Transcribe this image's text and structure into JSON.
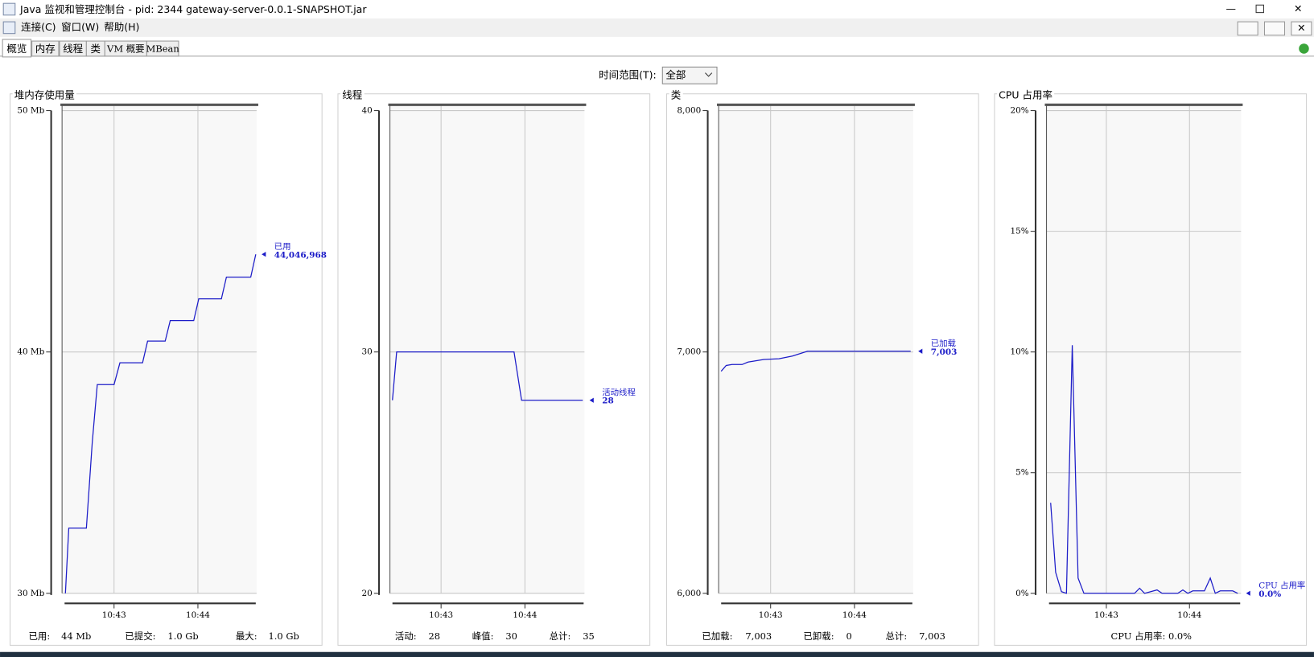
{
  "window": {
    "title": "Java 监视和管理控制台 - pid: 2344 gateway-server-0.0.1-SNAPSHOT.jar"
  },
  "menu": [
    "连接(C)",
    "窗口(W)",
    "帮助(H)"
  ],
  "tabs": [
    "概览",
    "内存",
    "线程",
    "类",
    "VM 概要",
    "MBean"
  ],
  "time_range": {
    "label": "时间范围(T):",
    "value": "全部"
  },
  "chart_data": [
    {
      "type": "line",
      "title": "堆内存使用量",
      "grid": true,
      "x": [
        642.42,
        642.46,
        642.67,
        642.74,
        642.8,
        643.0,
        643.07,
        643.34,
        643.4,
        643.61,
        643.67,
        643.95,
        644.01,
        644.28,
        644.34,
        644.63,
        644.69
      ],
      "xlim": [
        642.38,
        644.7
      ],
      "xticks": [
        {
          "value": 643,
          "label": "10:43"
        },
        {
          "value": 644,
          "label": "10:44"
        }
      ],
      "ylim": [
        30,
        50
      ],
      "yticks": [
        {
          "value": 30,
          "label": "30 Mb"
        },
        {
          "value": 40,
          "label": "40 Mb"
        },
        {
          "value": 50,
          "label": "50 Mb"
        }
      ],
      "series": [
        {
          "name": "已用",
          "color": "#1c1cc8",
          "values": [
            30.0,
            32.7,
            32.7,
            36.25,
            38.65,
            38.65,
            39.55,
            39.55,
            40.45,
            40.45,
            41.3,
            41.3,
            42.2,
            42.2,
            43.1,
            43.1,
            44.046968
          ],
          "value_labels": [
            null,
            null,
            null,
            null,
            null,
            null,
            null,
            null,
            null,
            null,
            null,
            null,
            null,
            null,
            null,
            null,
            "44,046,968"
          ]
        }
      ],
      "summary": [
        "已用:",
        "44  Mb",
        "已提交:",
        "1.0  Gb",
        "最大:",
        "1.0  Gb"
      ]
    },
    {
      "type": "line",
      "title": "线程",
      "grid": true,
      "x": [
        642.42,
        642.47,
        643.87,
        643.96,
        644.69
      ],
      "xlim": [
        642.39,
        644.71
      ],
      "xticks": [
        {
          "value": 643,
          "label": "10:43"
        },
        {
          "value": 644,
          "label": "10:44"
        }
      ],
      "ylim": [
        20,
        40
      ],
      "yticks": [
        20,
        30,
        40
      ],
      "series": [
        {
          "name": "活动线程",
          "color": "#1c1cc8",
          "values": [
            28,
            30,
            30,
            28,
            28
          ]
        }
      ],
      "summary": [
        "活动:",
        "28",
        "峰值:",
        "30",
        "总计:",
        "35"
      ]
    },
    {
      "type": "line",
      "title": "类",
      "grid": true,
      "x": [
        642.41,
        642.47,
        642.54,
        642.66,
        642.73,
        642.92,
        643.1,
        643.26,
        643.44,
        644.67
      ],
      "xlim": [
        642.38,
        644.7
      ],
      "xticks": [
        {
          "value": 643,
          "label": "10:43"
        },
        {
          "value": 644,
          "label": "10:44"
        }
      ],
      "ylim": [
        6000,
        8000
      ],
      "yticks": [
        {
          "value": 6000,
          "label": "6,000"
        },
        {
          "value": 7000,
          "label": "7,000"
        },
        {
          "value": 8000,
          "label": "8,000"
        }
      ],
      "series": [
        {
          "name": "已加载",
          "color": "#1c1cc8",
          "values": [
            6920,
            6944,
            6948,
            6948,
            6958,
            6969,
            6972,
            6983,
            7003,
            7003
          ],
          "value_labels": [
            null,
            null,
            null,
            null,
            null,
            null,
            null,
            null,
            null,
            "7,003"
          ]
        }
      ],
      "summary": [
        "已加载:",
        "7,003",
        "已卸载:",
        "0",
        "总计:",
        "7,003"
      ]
    },
    {
      "type": "line",
      "title": "CPU 占用率",
      "grid": true,
      "x": [
        642.33,
        642.39,
        642.46,
        642.52,
        642.59,
        642.66,
        642.73,
        643.34,
        643.4,
        643.46,
        643.61,
        643.67,
        643.86,
        643.92,
        643.98,
        644.04,
        644.18,
        644.25,
        644.31,
        644.37,
        644.52,
        644.58
      ],
      "xlim": [
        642.28,
        644.62
      ],
      "xticks": [
        {
          "value": 643,
          "label": "10:43"
        },
        {
          "value": 644,
          "label": "10:44"
        }
      ],
      "ylim": [
        0,
        20
      ],
      "yticks": [
        {
          "value": 0,
          "label": "0%"
        },
        {
          "value": 5,
          "label": "5%"
        },
        {
          "value": 10,
          "label": "10%"
        },
        {
          "value": 15,
          "label": "15%"
        },
        {
          "value": 20,
          "label": "20%"
        }
      ],
      "series": [
        {
          "name": "CPU 占用率",
          "color": "#1c1cc8",
          "values": [
            3.75,
            0.87,
            0.07,
            0,
            10.28,
            0.63,
            0,
            0,
            0.21,
            0,
            0.14,
            0,
            0,
            0.14,
            0,
            0.1,
            0.1,
            0.63,
            0,
            0.1,
            0.1,
            0
          ],
          "value_labels": [
            null,
            null,
            null,
            null,
            null,
            null,
            null,
            null,
            null,
            null,
            null,
            null,
            null,
            null,
            null,
            null,
            null,
            null,
            null,
            null,
            null,
            "0.0%"
          ]
        }
      ],
      "summary": [
        "CPU 占用率: 0.0%"
      ]
    }
  ]
}
